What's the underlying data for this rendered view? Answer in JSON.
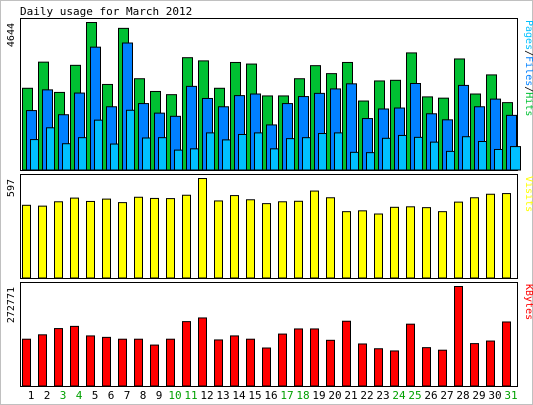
{
  "title": "Daily usage for March 2012",
  "chart_data": {
    "type": "bar",
    "title": "Daily usage for March 2012",
    "days": [
      "1",
      "2",
      "3",
      "4",
      "5",
      "6",
      "7",
      "8",
      "9",
      "10",
      "11",
      "12",
      "13",
      "14",
      "15",
      "16",
      "17",
      "18",
      "19",
      "20",
      "21",
      "22",
      "23",
      "24",
      "25",
      "26",
      "27",
      "28",
      "29",
      "30",
      "31"
    ],
    "weekend_days": [
      "3",
      "4",
      "10",
      "11",
      "17",
      "18",
      "24",
      "25",
      "31"
    ],
    "panels": [
      {
        "id": "hits",
        "side_label": [
          "Pages",
          "/",
          "Files",
          "/",
          "Hits"
        ],
        "ymax_label": "4644",
        "ymax": 4644,
        "series": [
          {
            "name": "Hits",
            "color": "#00c032",
            "values": [
              2580,
              3400,
              2450,
              3300,
              4644,
              2700,
              4460,
              2880,
              2480,
              2380,
              3540,
              3440,
              2580,
              3390,
              3340,
              2340,
              2340,
              2880,
              3290,
              3040,
              3390,
              2180,
              2810,
              2830,
              3690,
              2310,
              2270,
              3500,
              2400,
              3000,
              2130
            ]
          },
          {
            "name": "Files",
            "color": "#0080ff",
            "values": [
              1880,
              2530,
              1750,
              2430,
              3870,
              2000,
              4000,
              2100,
              1800,
              1700,
              2640,
              2260,
              2000,
              2350,
              2400,
              1430,
              2100,
              2320,
              2420,
              2560,
              2720,
              1630,
              1930,
              1960,
              2730,
              1780,
              1590,
              2670,
              2000,
              2240,
              1730
            ]
          },
          {
            "name": "Pages",
            "color": "#00c0ff",
            "values": [
              970,
              1340,
              840,
              1030,
              1580,
              830,
              1890,
              1020,
              1030,
              640,
              680,
              1180,
              960,
              1130,
              1180,
              680,
              1000,
              1030,
              1160,
              1180,
              570,
              560,
              1010,
              1100,
              1040,
              890,
              600,
              1060,
              910,
              660,
              750
            ]
          }
        ]
      },
      {
        "id": "visits",
        "side_label": [
          "Visits"
        ],
        "ymax_label": "597",
        "ymax": 597,
        "series": [
          {
            "name": "Visits",
            "color": "#ffff00",
            "values": [
              437,
              432,
              458,
              480,
              460,
              474,
              453,
              485,
              478,
              477,
              497,
              597,
              463,
              495,
              470,
              447,
              458,
              461,
              522,
              482,
              399,
              404,
              385,
              425,
              428,
              423,
              399,
              456,
              482,
              503,
              507
            ]
          }
        ]
      },
      {
        "id": "kbytes",
        "side_label": [
          "KBytes"
        ],
        "ymax_label": "272771",
        "ymax": 272771,
        "series": [
          {
            "name": "KBytes",
            "color": "#ff0000",
            "values": [
              129000,
              141000,
              158000,
              164000,
              138000,
              134000,
              129000,
              129000,
              113000,
              129000,
              177000,
              187000,
              127000,
              138000,
              129000,
              105000,
              143000,
              157000,
              157000,
              126000,
              178000,
              116000,
              103000,
              97000,
              170000,
              106000,
              99000,
              272771,
              117000,
              124000,
              176000
            ]
          }
        ]
      }
    ]
  }
}
